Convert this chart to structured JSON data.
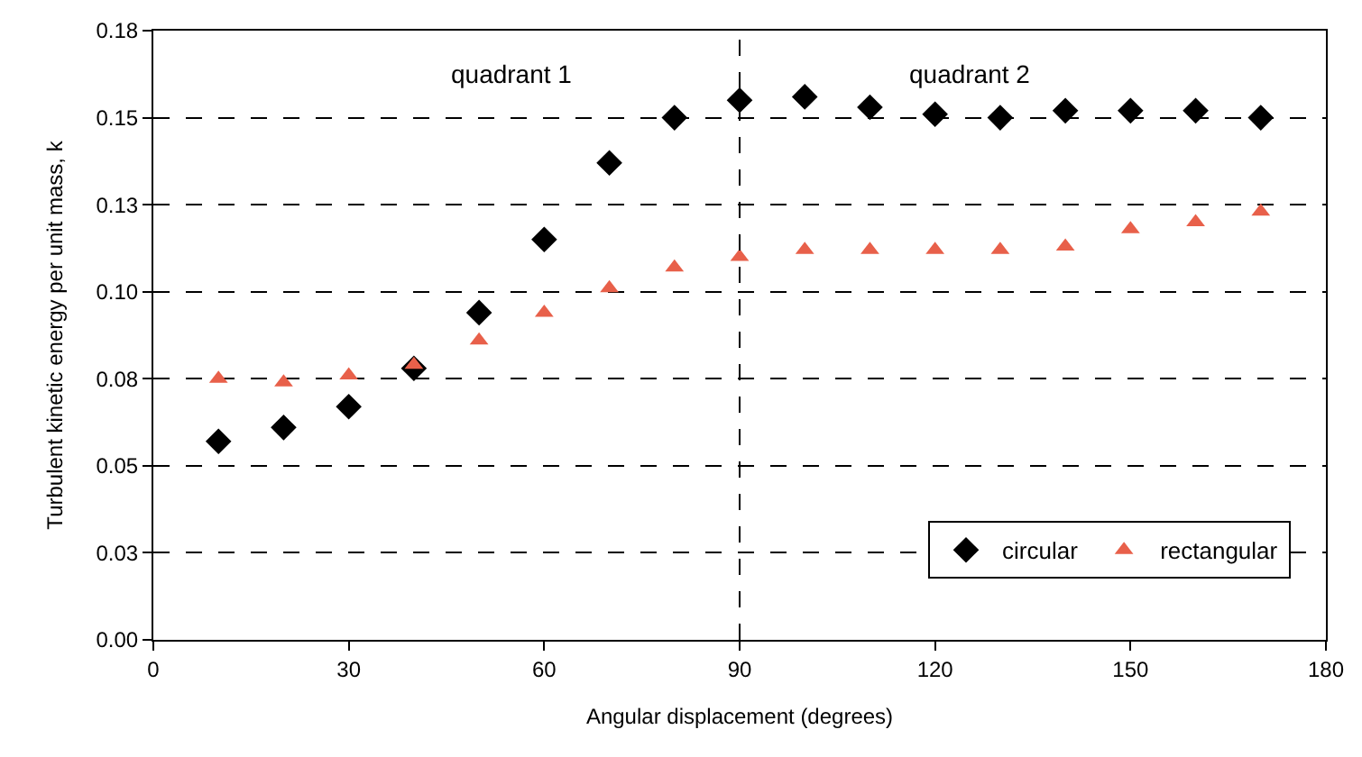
{
  "chart_data": {
    "type": "scatter",
    "xlabel": "Angular displacement (degrees)",
    "ylabel": "Turbulent kinetic energy per unit mass, k",
    "x": [
      10,
      20,
      30,
      40,
      50,
      60,
      70,
      80,
      90,
      100,
      110,
      120,
      130,
      140,
      150,
      160,
      170
    ],
    "series": [
      {
        "name": "circular",
        "color": "#000000",
        "marker": "diamond",
        "values": [
          0.057,
          0.061,
          0.067,
          0.078,
          0.094,
          0.115,
          0.137,
          0.15,
          0.155,
          0.156,
          0.153,
          0.151,
          0.15,
          0.152,
          0.152,
          0.152,
          0.15
        ]
      },
      {
        "name": "rectangular",
        "color": "#e8604a",
        "marker": "triangle",
        "values": [
          0.075,
          0.074,
          0.076,
          0.079,
          0.086,
          0.094,
          0.101,
          0.107,
          0.11,
          0.112,
          0.112,
          0.112,
          0.112,
          0.113,
          0.118,
          0.12,
          0.123
        ]
      }
    ],
    "xlim": [
      0,
      180
    ],
    "xticks": [
      0,
      30,
      60,
      90,
      120,
      150,
      180
    ],
    "ylim": [
      0,
      0.175
    ],
    "yticks": [
      {
        "value": 0,
        "label": "0.00"
      },
      {
        "value": 0.025,
        "label": "0.03"
      },
      {
        "value": 0.05,
        "label": "0.05"
      },
      {
        "value": 0.075,
        "label": "0.08"
      },
      {
        "value": 0.1,
        "label": "0.10"
      },
      {
        "value": 0.125,
        "label": "0.13"
      },
      {
        "value": 0.15,
        "label": "0.15"
      },
      {
        "value": 0.175,
        "label": "0.18"
      }
    ],
    "grid": "y",
    "legend": "bottom right",
    "ref_lines": [
      {
        "axis": "x",
        "value": 90,
        "line_style": "dashed",
        "color": "#000000"
      }
    ],
    "annotations": [
      "quadrant 1",
      "quadrant 2"
    ]
  }
}
